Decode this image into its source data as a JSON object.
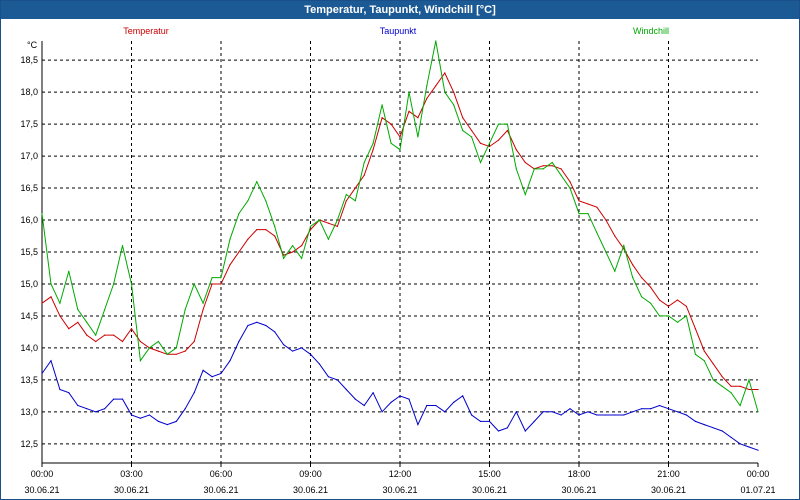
{
  "window": {
    "title": "Temperatur, Taupunkt, Windchill [°C]"
  },
  "colors": {
    "temperatur": "#cc0000",
    "taupunkt": "#0000cc",
    "windchill": "#00aa00",
    "titlebar": "#1c5a96",
    "grid": "#000000"
  },
  "chart_data": {
    "type": "line",
    "title": "Temperatur, Taupunkt, Windchill [°C]",
    "ylabel": "°C",
    "xlabel": "",
    "ylim": [
      12.2,
      18.8
    ],
    "xlim": [
      0,
      24
    ],
    "grid": true,
    "legend": {
      "placement": "top",
      "entries": [
        "Temperatur",
        "Taupunkt",
        "Windchill"
      ]
    },
    "yticks": [
      12.5,
      13.0,
      13.5,
      14.0,
      14.5,
      15.0,
      15.5,
      16.0,
      16.5,
      17.0,
      17.5,
      18.0,
      18.5
    ],
    "ytick_labels": [
      "12,5",
      "13,0",
      "13,5",
      "14,0",
      "14,5",
      "15,0",
      "15,5",
      "16,0",
      "16,5",
      "17,0",
      "17,5",
      "18,0",
      "18,5"
    ],
    "xticks": [
      {
        "x": 0,
        "time": "00:00",
        "date": "30.06.21"
      },
      {
        "x": 3,
        "time": "03:00",
        "date": "30.06.21"
      },
      {
        "x": 6,
        "time": "06:00",
        "date": "30.06.21"
      },
      {
        "x": 9,
        "time": "09:00",
        "date": "30.06.21"
      },
      {
        "x": 12,
        "time": "12:00",
        "date": "30.06.21"
      },
      {
        "x": 15,
        "time": "15:00",
        "date": "30.06.21"
      },
      {
        "x": 18,
        "time": "18:00",
        "date": "30.06.21"
      },
      {
        "x": 21,
        "time": "21:00",
        "date": "30.06.21"
      },
      {
        "x": 24,
        "time": "00:00",
        "date": "01.07.21"
      }
    ],
    "series": [
      {
        "name": "Temperatur",
        "color": "#cc0000",
        "x": [
          0,
          0.3,
          0.6,
          0.9,
          1.2,
          1.5,
          1.8,
          2.1,
          2.4,
          2.7,
          3.0,
          3.3,
          3.6,
          3.9,
          4.2,
          4.5,
          4.8,
          5.1,
          5.4,
          5.7,
          6.0,
          6.3,
          6.6,
          6.9,
          7.2,
          7.5,
          7.8,
          8.1,
          8.4,
          8.7,
          9.0,
          9.3,
          9.6,
          9.9,
          10.2,
          10.5,
          10.8,
          11.1,
          11.4,
          11.7,
          12.0,
          12.3,
          12.6,
          12.9,
          13.2,
          13.5,
          13.8,
          14.1,
          14.4,
          14.7,
          15.0,
          15.3,
          15.6,
          15.9,
          16.2,
          16.5,
          16.8,
          17.1,
          17.4,
          17.7,
          18.0,
          18.3,
          18.6,
          18.9,
          19.2,
          19.5,
          19.8,
          20.1,
          20.4,
          20.7,
          21.0,
          21.3,
          21.6,
          21.9,
          22.2,
          22.5,
          22.8,
          23.1,
          23.4,
          23.7,
          24.0
        ],
        "values": [
          14.7,
          14.8,
          14.5,
          14.3,
          14.4,
          14.2,
          14.1,
          14.2,
          14.2,
          14.1,
          14.3,
          14.1,
          14.0,
          13.95,
          13.9,
          13.9,
          13.95,
          14.1,
          14.6,
          15.0,
          15.0,
          15.3,
          15.5,
          15.7,
          15.85,
          15.85,
          15.75,
          15.45,
          15.5,
          15.6,
          15.85,
          16.0,
          15.95,
          15.9,
          16.3,
          16.5,
          16.7,
          17.1,
          17.6,
          17.5,
          17.3,
          17.7,
          17.6,
          17.9,
          18.1,
          18.3,
          18.0,
          17.6,
          17.4,
          17.2,
          17.15,
          17.25,
          17.4,
          17.1,
          16.9,
          16.8,
          16.85,
          16.85,
          16.8,
          16.6,
          16.3,
          16.25,
          16.2,
          16.0,
          15.75,
          15.55,
          15.3,
          15.1,
          14.95,
          14.75,
          14.65,
          14.75,
          14.65,
          14.3,
          13.95,
          13.75,
          13.55,
          13.4,
          13.4,
          13.35,
          13.35
        ]
      },
      {
        "name": "Taupunkt",
        "color": "#0000cc",
        "x": [
          0,
          0.3,
          0.6,
          0.9,
          1.2,
          1.5,
          1.8,
          2.1,
          2.4,
          2.7,
          3.0,
          3.3,
          3.6,
          3.9,
          4.2,
          4.5,
          4.8,
          5.1,
          5.4,
          5.7,
          6.0,
          6.3,
          6.6,
          6.9,
          7.2,
          7.5,
          7.8,
          8.1,
          8.4,
          8.7,
          9.0,
          9.3,
          9.6,
          9.9,
          10.2,
          10.5,
          10.8,
          11.1,
          11.4,
          11.7,
          12.0,
          12.3,
          12.6,
          12.9,
          13.2,
          13.5,
          13.8,
          14.1,
          14.4,
          14.7,
          15.0,
          15.3,
          15.6,
          15.9,
          16.2,
          16.5,
          16.8,
          17.1,
          17.4,
          17.7,
          18.0,
          18.3,
          18.6,
          18.9,
          19.2,
          19.5,
          19.8,
          20.1,
          20.4,
          20.7,
          21.0,
          21.3,
          21.6,
          21.9,
          22.2,
          22.5,
          22.8,
          23.1,
          23.4,
          23.7,
          24.0
        ],
        "values": [
          13.6,
          13.8,
          13.35,
          13.3,
          13.1,
          13.05,
          13.0,
          13.05,
          13.2,
          13.2,
          12.95,
          12.9,
          12.95,
          12.85,
          12.8,
          12.85,
          13.05,
          13.3,
          13.65,
          13.55,
          13.6,
          13.8,
          14.1,
          14.35,
          14.4,
          14.35,
          14.25,
          14.05,
          13.95,
          14.0,
          13.9,
          13.75,
          13.55,
          13.5,
          13.35,
          13.2,
          13.1,
          13.3,
          13.0,
          13.15,
          13.25,
          13.2,
          12.8,
          13.1,
          13.1,
          13.0,
          13.15,
          13.25,
          12.95,
          12.85,
          12.85,
          12.7,
          12.75,
          13.0,
          12.7,
          12.85,
          13.0,
          13.0,
          12.95,
          13.05,
          12.95,
          13.0,
          12.95,
          12.95,
          12.95,
          12.95,
          13.0,
          13.05,
          13.05,
          13.1,
          13.05,
          13.0,
          12.95,
          12.85,
          12.8,
          12.75,
          12.7,
          12.6,
          12.5,
          12.45,
          12.4
        ]
      },
      {
        "name": "Windchill",
        "color": "#00aa00",
        "x": [
          0,
          0.3,
          0.6,
          0.9,
          1.2,
          1.5,
          1.8,
          2.1,
          2.4,
          2.7,
          3.0,
          3.3,
          3.6,
          3.9,
          4.2,
          4.5,
          4.8,
          5.1,
          5.4,
          5.7,
          6.0,
          6.3,
          6.6,
          6.9,
          7.2,
          7.5,
          7.8,
          8.1,
          8.4,
          8.7,
          9.0,
          9.3,
          9.6,
          9.9,
          10.2,
          10.5,
          10.8,
          11.1,
          11.4,
          11.7,
          12.0,
          12.3,
          12.6,
          12.9,
          13.2,
          13.5,
          13.8,
          14.1,
          14.4,
          14.7,
          15.0,
          15.3,
          15.6,
          15.9,
          16.2,
          16.5,
          16.8,
          17.1,
          17.4,
          17.7,
          18.0,
          18.3,
          18.6,
          18.9,
          19.2,
          19.5,
          19.8,
          20.1,
          20.4,
          20.7,
          21.0,
          21.3,
          21.6,
          21.9,
          22.2,
          22.5,
          22.8,
          23.1,
          23.4,
          23.7,
          24.0
        ],
        "values": [
          16.1,
          15.0,
          14.7,
          15.2,
          14.6,
          14.4,
          14.2,
          14.6,
          15.0,
          15.6,
          15.0,
          13.8,
          14.0,
          14.1,
          13.9,
          14.0,
          14.6,
          15.0,
          14.7,
          15.1,
          15.1,
          15.7,
          16.1,
          16.3,
          16.6,
          16.3,
          15.9,
          15.4,
          15.6,
          15.4,
          15.9,
          16.0,
          15.7,
          16.0,
          16.4,
          16.3,
          16.9,
          17.2,
          17.8,
          17.2,
          17.1,
          18.0,
          17.3,
          18.1,
          18.8,
          18.0,
          17.8,
          17.4,
          17.3,
          16.9,
          17.2,
          17.5,
          17.5,
          16.8,
          16.4,
          16.8,
          16.8,
          16.9,
          16.7,
          16.5,
          16.1,
          16.1,
          15.8,
          15.5,
          15.2,
          15.6,
          15.1,
          14.8,
          14.7,
          14.5,
          14.5,
          14.4,
          14.5,
          13.9,
          13.8,
          13.5,
          13.4,
          13.3,
          13.1,
          13.5,
          13.0
        ]
      }
    ]
  }
}
